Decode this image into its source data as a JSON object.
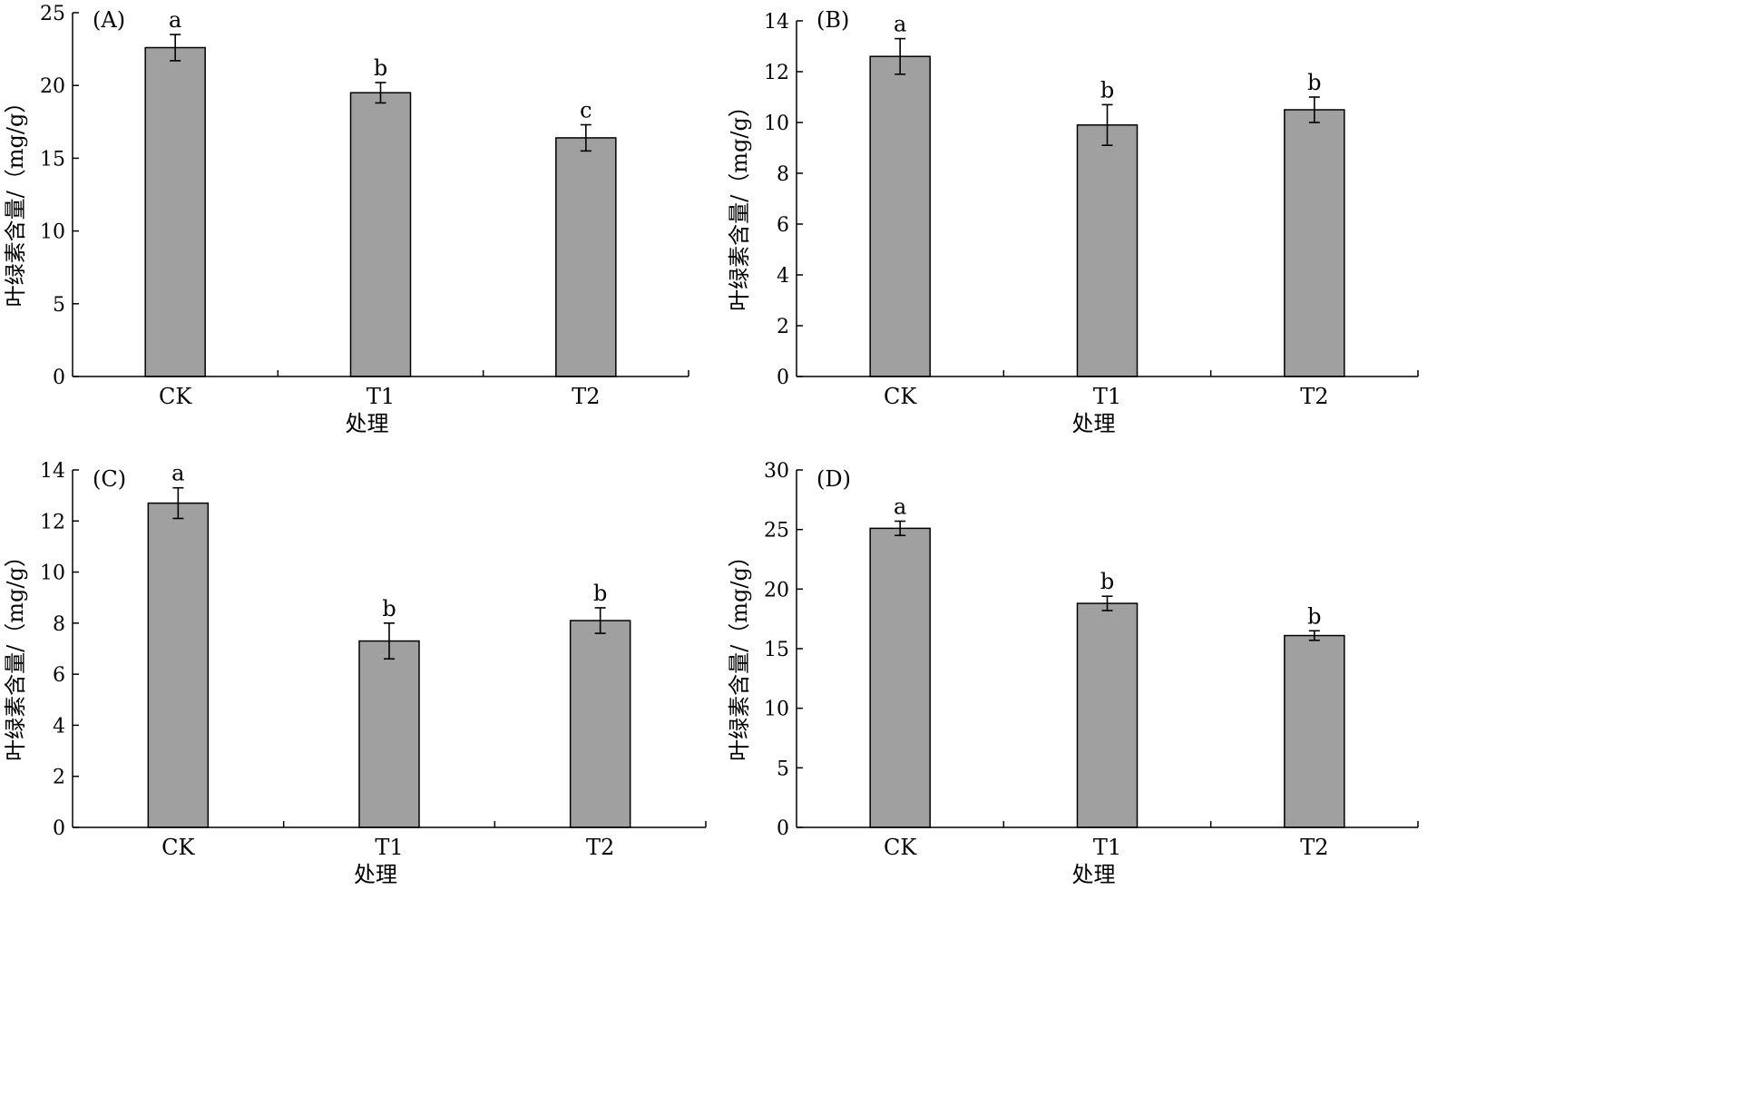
{
  "chart_data": [
    {
      "type": "bar",
      "panel_label": "(A)",
      "categories": [
        "CK",
        "T1",
        "T2"
      ],
      "values": [
        22.6,
        19.5,
        16.4
      ],
      "errors": [
        0.9,
        0.7,
        0.9
      ],
      "significance": [
        "a",
        "b",
        "c"
      ],
      "xlabel": "处理",
      "ylabel": "叶绿素含量/（mg/g）",
      "ylim": [
        0,
        25
      ],
      "yticks": [
        0,
        5,
        10,
        15,
        20,
        25
      ]
    },
    {
      "type": "bar",
      "panel_label": "(B)",
      "categories": [
        "CK",
        "T1",
        "T2"
      ],
      "values": [
        12.6,
        9.9,
        10.5
      ],
      "errors": [
        0.7,
        0.8,
        0.5
      ],
      "significance": [
        "a",
        "b",
        "b"
      ],
      "xlabel": "处理",
      "ylabel": "叶绿素含量/（mg/g）",
      "ylim": [
        0,
        14
      ],
      "yticks": [
        0,
        2,
        4,
        6,
        8,
        10,
        12,
        14
      ]
    },
    {
      "type": "bar",
      "panel_label": "(C)",
      "categories": [
        "CK",
        "T1",
        "T2"
      ],
      "values": [
        12.7,
        7.3,
        8.1
      ],
      "errors": [
        0.6,
        0.7,
        0.5
      ],
      "significance": [
        "a",
        "b",
        "b"
      ],
      "xlabel": "处理",
      "ylabel": "叶绿素含量/（mg/g）",
      "ylim": [
        0,
        14
      ],
      "yticks": [
        0,
        2,
        4,
        6,
        8,
        10,
        12,
        14
      ]
    },
    {
      "type": "bar",
      "panel_label": "(D)",
      "categories": [
        "CK",
        "T1",
        "T2"
      ],
      "values": [
        25.1,
        18.8,
        16.1
      ],
      "errors": [
        0.6,
        0.6,
        0.4
      ],
      "significance": [
        "a",
        "b",
        "b"
      ],
      "xlabel": "处理",
      "ylabel": "叶绿素含量/（mg/g）",
      "ylim": [
        0,
        30
      ],
      "yticks": [
        0,
        5,
        10,
        15,
        20,
        25,
        30
      ]
    }
  ]
}
